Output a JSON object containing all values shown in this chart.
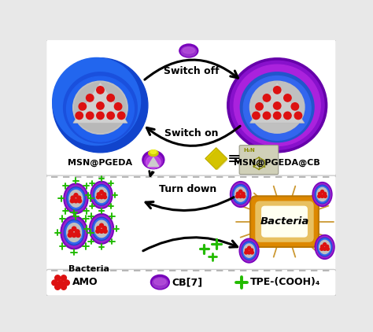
{
  "bg_color": "#e8e8e8",
  "panel_bg": "#ffffff",
  "msn_pgeda_label": "MSN@PGEDA",
  "msn_pgeda_cb_label": "MSN@PGEDA@CB",
  "switch_off_label": "Switch off",
  "switch_on_label": "Switch on",
  "turn_down_label": "Turn down",
  "bacteria_label": "Bacteria",
  "bacteria_label2": "Bacteria",
  "amo_label": "AMO",
  "cb7_label": "CB[7]",
  "tpe_label": "TPE-(COOH)₄",
  "blue_outer": "#1a55dd",
  "blue_inner": "#2266ee",
  "blue_ring": "#3388ff",
  "purple_outer": "#8800cc",
  "purple_mid": "#aa22dd",
  "purple_light": "#cc55ee",
  "gray_core": "#b0b0b0",
  "gray_tri": "#c5c5c5",
  "red_dot": "#dd1111",
  "yellow_cb": "#ddcc00",
  "green_tpe": "#22bb00",
  "bacteria_orange": "#dd8800",
  "bacteria_tan": "#e8c060",
  "bacteria_white": "#fffff0",
  "black": "#000000",
  "dash_color": "#aaaaaa"
}
